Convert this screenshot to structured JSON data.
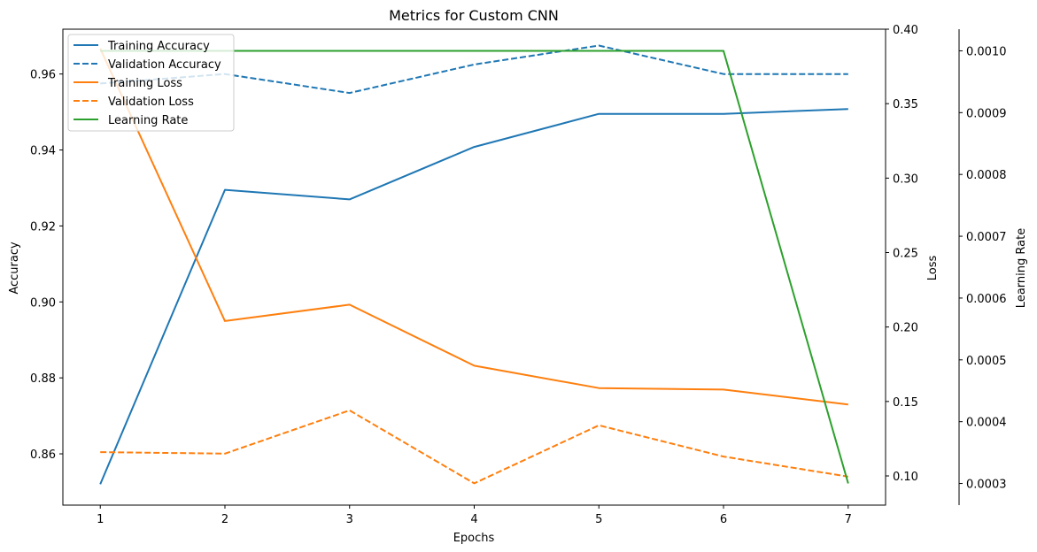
{
  "chart_data": {
    "type": "line",
    "title": "Metrics for Custom CNN",
    "xlabel": "Epochs",
    "x": [
      1,
      2,
      3,
      4,
      5,
      6,
      7
    ],
    "xlim": [
      0.7,
      7.3
    ],
    "axes": {
      "accuracy": {
        "label": "Accuracy",
        "position": "left",
        "ylim": [
          0.8465,
          0.9718
        ],
        "ticks": [
          0.86,
          0.88,
          0.9,
          0.92,
          0.94,
          0.96
        ],
        "tick_labels": [
          "0.86",
          "0.88",
          "0.90",
          "0.92",
          "0.94",
          "0.96"
        ]
      },
      "loss": {
        "label": "Loss",
        "position": "right",
        "ylim": [
          0.0804,
          0.4
        ],
        "ticks": [
          0.1,
          0.15,
          0.2,
          0.25,
          0.3,
          0.35,
          0.4
        ],
        "tick_labels": [
          "0.10",
          "0.15",
          "0.20",
          "0.25",
          "0.30",
          "0.35",
          "0.40"
        ]
      },
      "lr": {
        "label": "Learning Rate",
        "position": "right-outer",
        "ylim": [
          0.000265,
          0.001035
        ],
        "ticks": [
          0.0003,
          0.0004,
          0.0005,
          0.0006,
          0.0007,
          0.0008,
          0.0009,
          0.001
        ],
        "tick_labels": [
          "0.0003",
          "0.0004",
          "0.0005",
          "0.0006",
          "0.0007",
          "0.0008",
          "0.0009",
          "0.0010"
        ]
      }
    },
    "series": [
      {
        "name": "Training Accuracy",
        "axis": "accuracy",
        "color": "#1f77b4",
        "dashed": false,
        "values": [
          0.852,
          0.9295,
          0.927,
          0.9408,
          0.9495,
          0.9495,
          0.9508
        ]
      },
      {
        "name": "Validation Accuracy",
        "axis": "accuracy",
        "color": "#1f77b4",
        "dashed": true,
        "values": [
          0.9575,
          0.96,
          0.955,
          0.9625,
          0.9675,
          0.96,
          0.96
        ]
      },
      {
        "name": "Training Loss",
        "axis": "loss",
        "color": "#ff7f0e",
        "dashed": false,
        "values": [
          0.387,
          0.204,
          0.215,
          0.174,
          0.159,
          0.158,
          0.148
        ]
      },
      {
        "name": "Validation Loss",
        "axis": "loss",
        "color": "#ff7f0e",
        "dashed": true,
        "values": [
          0.116,
          0.115,
          0.144,
          0.095,
          0.134,
          0.113,
          0.0995
        ]
      },
      {
        "name": "Learning Rate",
        "axis": "lr",
        "color": "#2ca02c",
        "dashed": false,
        "values": [
          0.001,
          0.001,
          0.001,
          0.001,
          0.001,
          0.001,
          0.0003
        ]
      }
    ],
    "legend_position": "top-left",
    "grid": false
  }
}
